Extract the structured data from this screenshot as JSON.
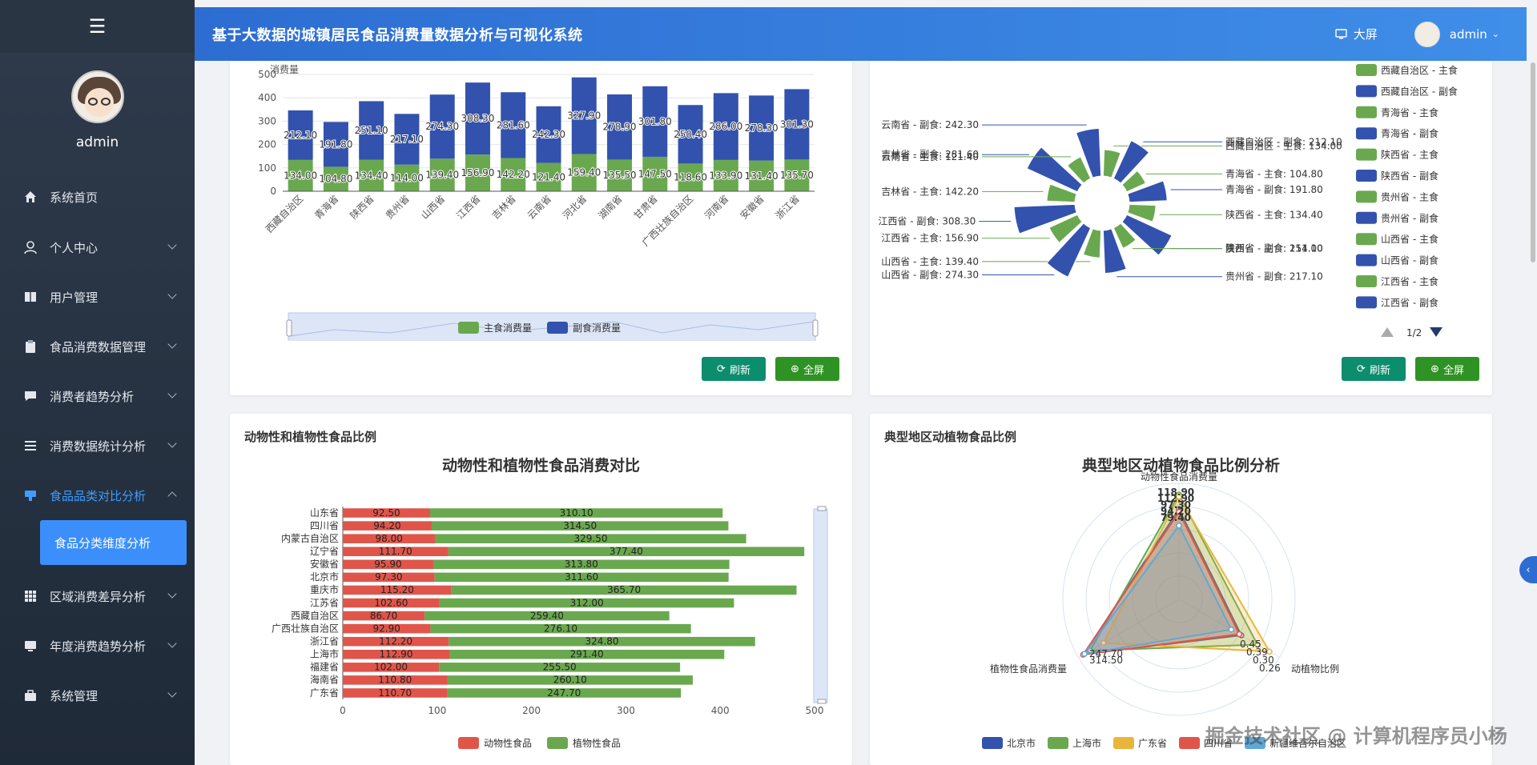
{
  "app_title": "基于大数据的城镇居民食品消费量数据分析与可视化系统",
  "topbar": {
    "screen_label": "大屏",
    "user_label": "admin"
  },
  "sidebar": {
    "username": "admin",
    "items": [
      {
        "label": "系统首页",
        "icon": "home-icon"
      },
      {
        "label": "个人中心",
        "icon": "user-icon"
      },
      {
        "label": "用户管理",
        "icon": "book-icon"
      },
      {
        "label": "食品消费数据管理",
        "icon": "clipboard-icon"
      },
      {
        "label": "消费者趋势分析",
        "icon": "chat-icon"
      },
      {
        "label": "消费数据统计分析",
        "icon": "list-icon"
      },
      {
        "label": "食品品类对比分析",
        "icon": "flag-icon"
      },
      {
        "label": "区域消费差异分析",
        "icon": "grid-icon"
      },
      {
        "label": "年度消费趋势分析",
        "icon": "monitor-icon"
      },
      {
        "label": "系统管理",
        "icon": "briefcase-icon"
      }
    ],
    "active_sub": "食品分类维度分析"
  },
  "buttons": {
    "refresh": "刷新",
    "full": "全屏"
  },
  "panels": {
    "bar_ratio_title": "动物性和植物性食品比例",
    "radar_title": "典型地区动植物食品比例"
  },
  "watermark": "掘金技术社区 @ 计算机程序员小杨",
  "colors": {
    "green": "#6aa84f",
    "blue": "#3352ad",
    "red": "#e0554a",
    "yellow": "#e9b63b",
    "accent": "#3c8ffb"
  },
  "chart_data": [
    {
      "type": "bar",
      "stacked": true,
      "ylabel": "消费量",
      "ylim": [
        0,
        500
      ],
      "yticks": [
        0,
        100,
        200,
        300,
        400,
        500
      ],
      "categories": [
        "西藏自治区",
        "青海省",
        "陕西省",
        "贵州省",
        "山西省",
        "江西省",
        "吉林省",
        "云南省",
        "河北省",
        "湖南省",
        "甘肃省",
        "广西壮族自治区",
        "河南省",
        "安徽省",
        "浙江省"
      ],
      "series": [
        {
          "name": "主食消费量",
          "values": [
            134.0,
            104.8,
            134.4,
            114.0,
            139.4,
            156.9,
            142.2,
            121.4,
            159.4,
            135.5,
            147.5,
            118.6,
            133.9,
            131.4,
            135.7
          ]
        },
        {
          "name": "副食消费量",
          "values": [
            212.1,
            191.8,
            251.1,
            217.1,
            274.3,
            308.3,
            281.6,
            242.3,
            327.9,
            278.9,
            301.8,
            250.4,
            286.0,
            278.3,
            301.3
          ]
        }
      ],
      "grid": true,
      "legend_position": "bottom"
    },
    {
      "type": "pie",
      "variant": "rose",
      "slices": [
        {
          "name": "西藏自治区 - 主食",
          "value": 134.0
        },
        {
          "name": "西藏自治区 - 副食",
          "value": 212.1
        },
        {
          "name": "青海省 - 主食",
          "value": 104.8
        },
        {
          "name": "青海省 - 副食",
          "value": 191.8
        },
        {
          "name": "陕西省 - 主食",
          "value": 134.4
        },
        {
          "name": "陕西省 - 副食",
          "value": 251.1
        },
        {
          "name": "贵州省 - 主食",
          "value": 114.0
        },
        {
          "name": "贵州省 - 副食",
          "value": 217.1
        },
        {
          "name": "山西省 - 主食",
          "value": 139.4
        },
        {
          "name": "山西省 - 副食",
          "value": 274.3
        },
        {
          "name": "江西省 - 主食",
          "value": 156.9
        },
        {
          "name": "江西省 - 副食",
          "value": 308.3
        },
        {
          "name": "吉林省 - 主食",
          "value": 142.2
        },
        {
          "name": "吉林省 - 副食",
          "value": 281.6
        },
        {
          "name": "云南省 - 主食",
          "value": 121.4
        },
        {
          "name": "云南省 - 副食",
          "value": 242.3
        }
      ],
      "legend_page": "1/2",
      "legend_position": "right"
    },
    {
      "type": "bar",
      "orientation": "horizontal",
      "stacked": true,
      "title": "动物性和植物性食品消费对比",
      "xlim": [
        0,
        500
      ],
      "xticks": [
        0,
        100,
        200,
        300,
        400,
        500
      ],
      "categories": [
        "山东省",
        "四川省",
        "内蒙古自治区",
        "辽宁省",
        "安徽省",
        "北京市",
        "重庆市",
        "江苏省",
        "西藏自治区",
        "广西壮族自治区",
        "浙江省",
        "上海市",
        "福建省",
        "海南省",
        "广东省"
      ],
      "series": [
        {
          "name": "动物性食品",
          "values": [
            92.5,
            94.2,
            98.0,
            111.7,
            95.9,
            97.3,
            115.2,
            102.6,
            86.7,
            92.9,
            112.2,
            112.9,
            102.0,
            110.8,
            110.7
          ]
        },
        {
          "name": "植物性食品",
          "values": [
            310.1,
            314.5,
            329.5,
            377.4,
            313.8,
            311.6,
            365.7,
            312.0,
            259.4,
            276.1,
            324.8,
            291.4,
            255.5,
            260.1,
            247.7
          ]
        }
      ],
      "legend_position": "bottom"
    },
    {
      "type": "radar",
      "title": "典型地区动植物食品比例分析",
      "indicators": [
        "动物性食品消费量",
        "植物性食品消费量",
        "动植物比例"
      ],
      "series": [
        {
          "name": "北京市",
          "values": [
            97.3,
            311.6,
            0.31
          ]
        },
        {
          "name": "上海市",
          "values": [
            112.9,
            291.4,
            0.39
          ]
        },
        {
          "name": "广东省",
          "values": [
            110.7,
            247.7,
            0.45
          ]
        },
        {
          "name": "四川省",
          "values": [
            94.2,
            314.5,
            0.3
          ]
        },
        {
          "name": "新疆维吾尔自治区",
          "values": [
            79.4,
            310.0,
            0.26
          ]
        }
      ],
      "visible_labels": [
        "118.90",
        "112.90",
        "97.30",
        "94.20",
        "79.40",
        "247.70",
        "314.50",
        "0.45",
        "0.39",
        "0.30",
        "0.26"
      ],
      "legend_position": "bottom"
    }
  ]
}
